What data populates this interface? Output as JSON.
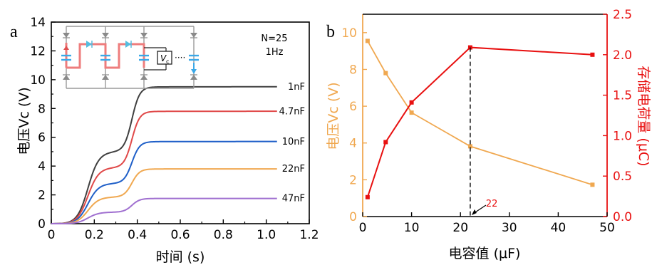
{
  "panels": {
    "a": "a",
    "b": "b"
  },
  "chart_data": [
    {
      "type": "line",
      "xlabel": "时间 (s)",
      "ylabel": "电压Vc (V)",
      "xlim": [
        0,
        1.2
      ],
      "ylim": [
        0,
        14
      ],
      "xticks": [
        "0",
        "0.2",
        "0.4",
        "0.6",
        "0.8",
        "1.0",
        "1.2"
      ],
      "yticks": [
        "0",
        "2",
        "4",
        "6",
        "8",
        "10",
        "12",
        "14"
      ],
      "annotations": [
        "N=25",
        "1Hz"
      ],
      "inset_labels": [
        "V",
        "c",
        "····"
      ],
      "series": [
        {
          "name": "1nF",
          "color": "#404040",
          "plateau1": 5.0,
          "final": 9.5
        },
        {
          "name": "4.7nF",
          "color": "#e04848",
          "plateau1": 3.9,
          "final": 7.8
        },
        {
          "name": "10nF",
          "color": "#1f5fc8",
          "plateau1": 2.8,
          "final": 5.7
        },
        {
          "name": "22nF",
          "color": "#f0a850",
          "plateau1": 1.85,
          "final": 3.8
        },
        {
          "name": "47nF",
          "color": "#a070d0",
          "plateau1": 0.8,
          "final": 1.75
        }
      ],
      "grid": false
    },
    {
      "type": "line",
      "xlabel": "电容值 (μF)",
      "ylabel": "电压Vc (V)",
      "ylabel_right": "存储电荷量 (μC)",
      "xlim": [
        0,
        50
      ],
      "ylim": [
        0,
        11
      ],
      "ylim_right": [
        0,
        2.5
      ],
      "xticks": [
        "0",
        "10",
        "20",
        "30",
        "40",
        "50"
      ],
      "yticks": [
        "0",
        "2",
        "4",
        "6",
        "8",
        "10"
      ],
      "yticks_right": [
        "0.0",
        "0.5",
        "1.0",
        "1.5",
        "2.0",
        "2.5"
      ],
      "x": [
        1,
        4.7,
        10,
        22,
        47
      ],
      "series": [
        {
          "axis": "left",
          "color": "#f0a850",
          "values": [
            9.55,
            7.8,
            5.65,
            3.82,
            1.73
          ]
        },
        {
          "axis": "right",
          "color": "#e81010",
          "values": [
            0.24,
            0.92,
            1.41,
            2.09,
            2.0
          ]
        }
      ],
      "annotation": {
        "text": "22",
        "x": 22
      },
      "grid": false
    }
  ]
}
